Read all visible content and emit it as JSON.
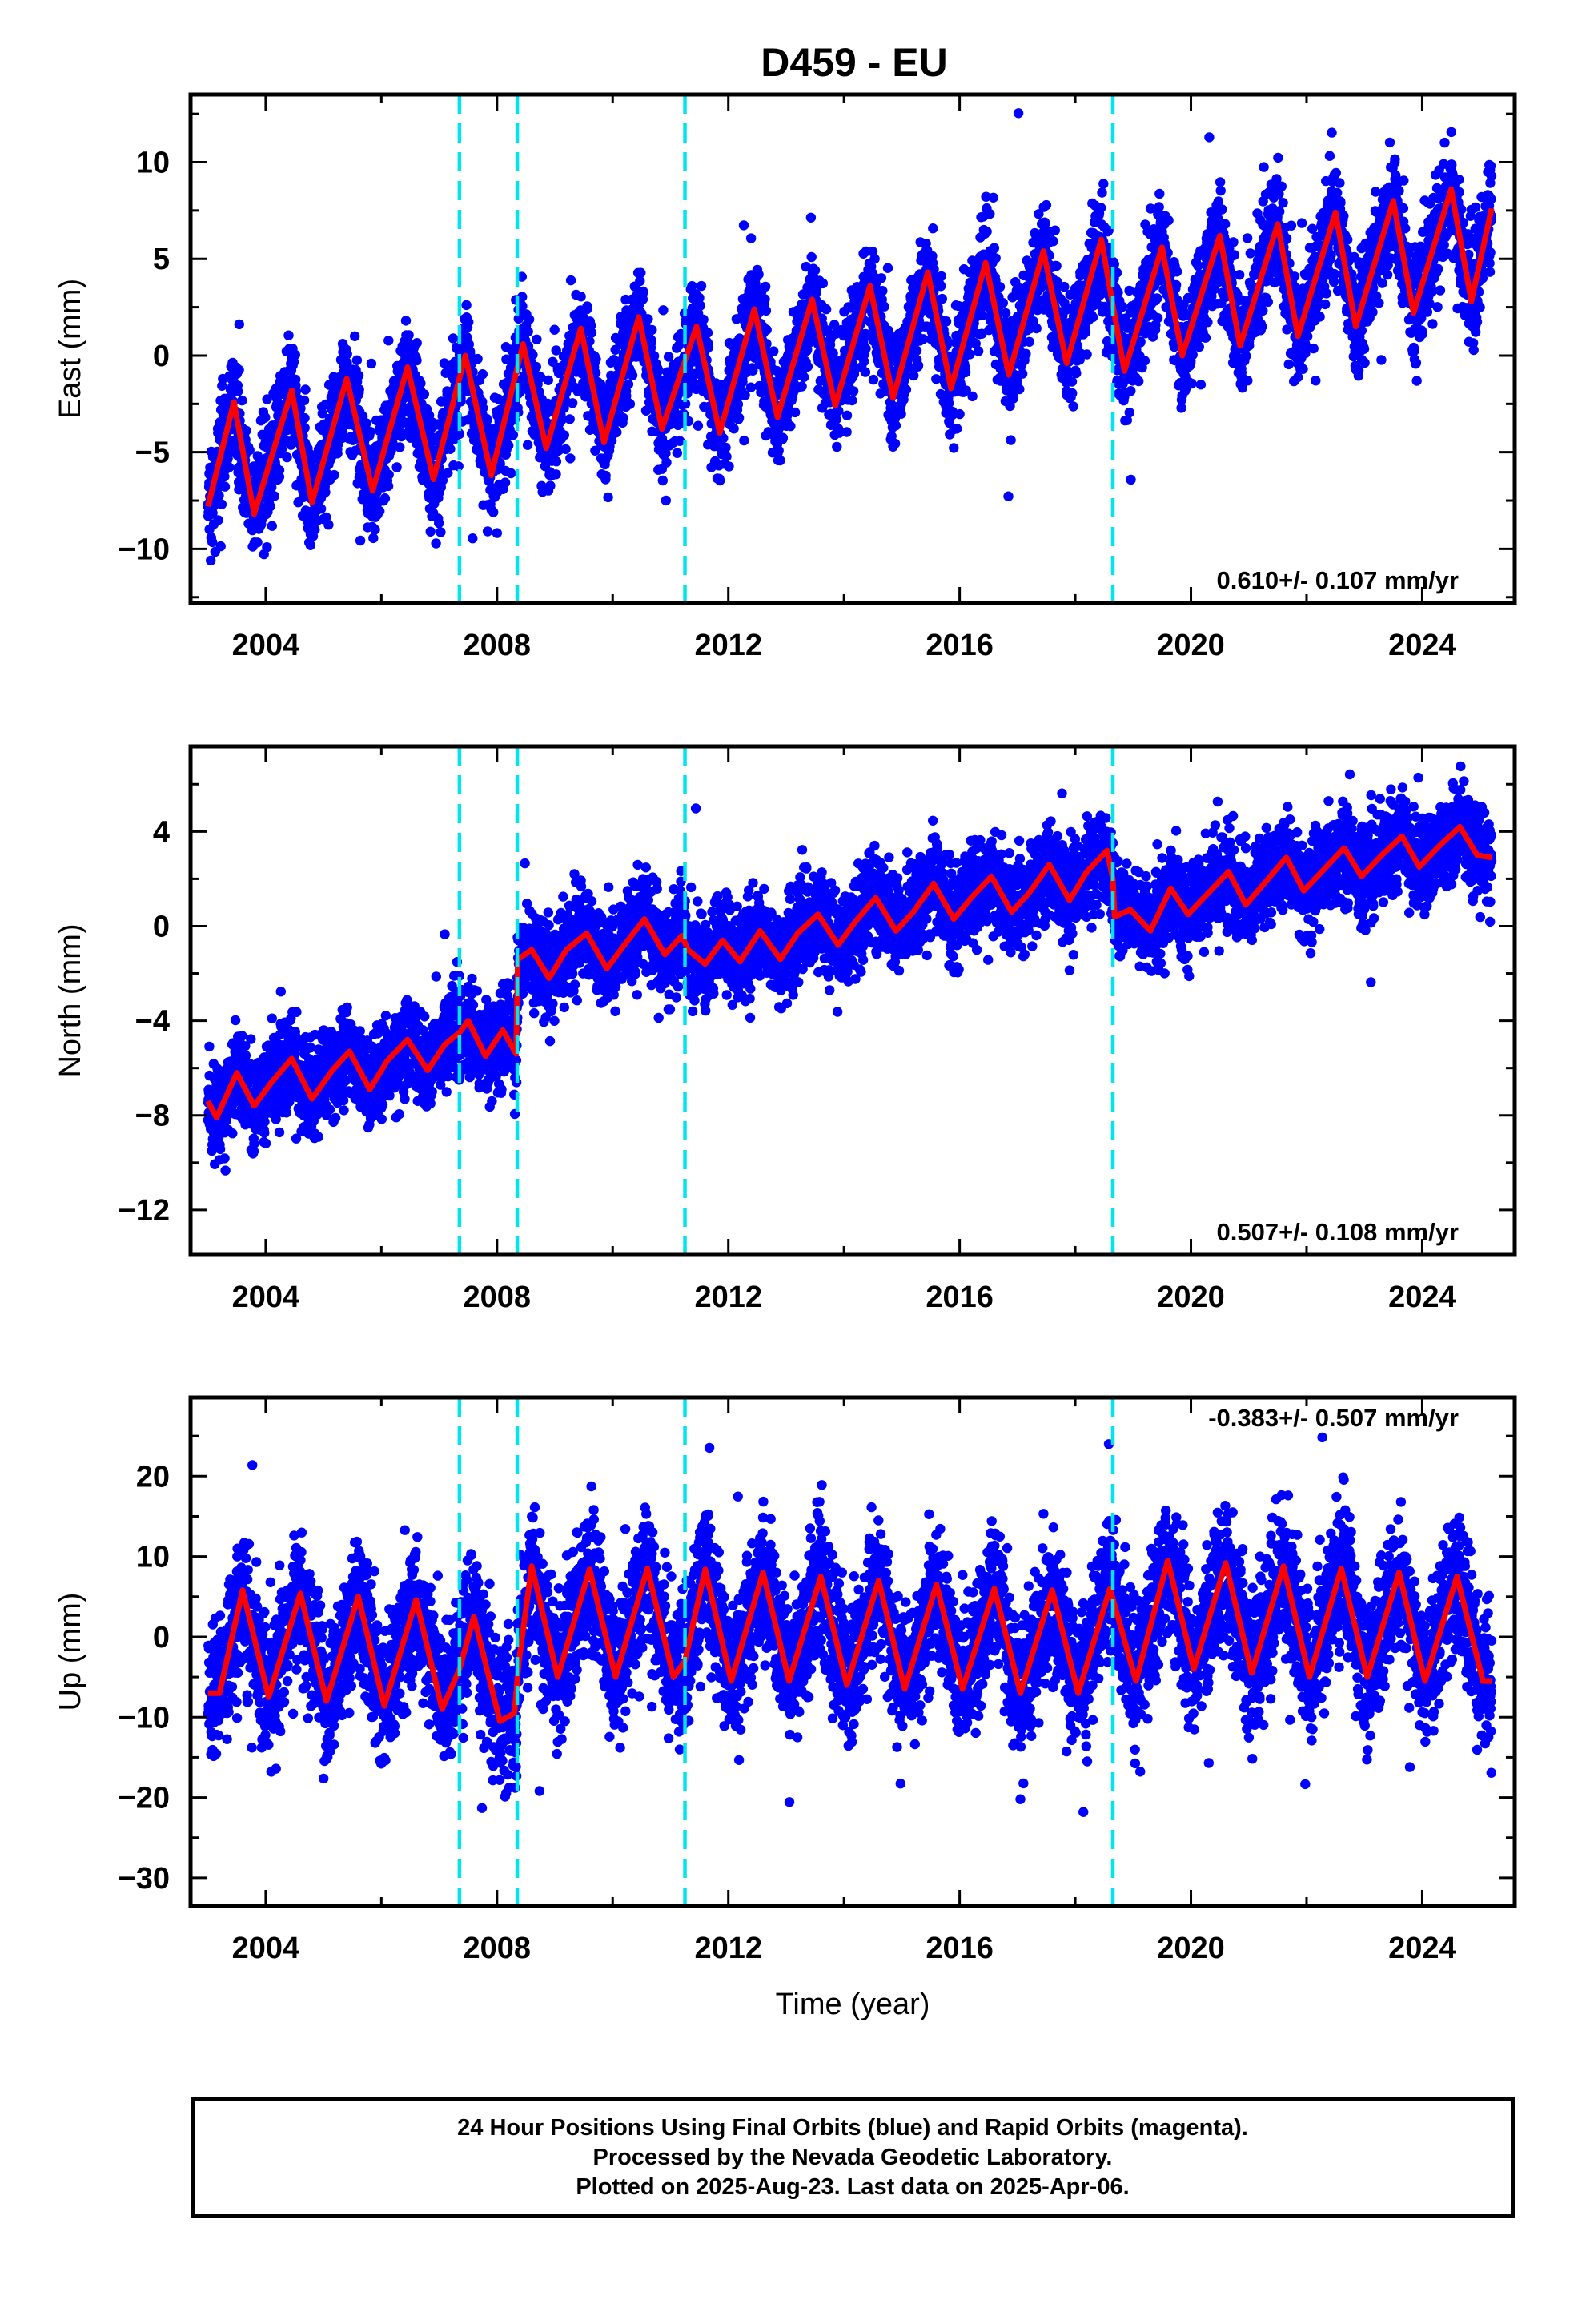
{
  "title": "D459 - EU",
  "colors": {
    "scatter": "#0000ff",
    "model": "#ff0000",
    "offset": "#00e5ee",
    "frame": "#000000"
  },
  "chart_data": [
    {
      "type": "scatter",
      "ylabel": "East (mm)",
      "xlabel": "",
      "xlim": [
        2002.7,
        2025.6
      ],
      "ylim": [
        -12.8,
        13.5
      ],
      "yticks": [
        10,
        5,
        0,
        -5,
        -10
      ],
      "yminor": 2.5,
      "xticks": [
        2004,
        2008,
        2012,
        2016,
        2020,
        2024
      ],
      "xminor": 2,
      "rate": "0.610+/- 0.107 mm/yr",
      "rate_pos": "bottom-right",
      "offsets": [
        2007.35,
        2008.35,
        2011.25,
        2018.65
      ],
      "model": {
        "x": [
          2003.0,
          2003.45,
          2003.8,
          2004.45,
          2004.8,
          2005.4,
          2005.85,
          2006.45,
          2006.9,
          2007.45,
          2007.9,
          2008.45,
          2008.85,
          2009.45,
          2009.85,
          2010.45,
          2010.85,
          2011.45,
          2011.85,
          2012.45,
          2012.85,
          2013.45,
          2013.85,
          2014.45,
          2014.85,
          2015.45,
          2015.85,
          2016.45,
          2016.85,
          2017.45,
          2017.85,
          2018.45,
          2018.85,
          2019.5,
          2019.85,
          2020.5,
          2020.85,
          2021.5,
          2021.85,
          2022.5,
          2022.85,
          2023.5,
          2023.85,
          2024.5,
          2024.85,
          2025.2
        ],
        "y": [
          -7.8,
          -2.4,
          -8.2,
          -1.8,
          -7.6,
          -1.2,
          -7.0,
          -0.6,
          -6.4,
          0.0,
          -6.2,
          0.6,
          -4.8,
          1.4,
          -4.5,
          2.0,
          -3.8,
          1.5,
          -4.0,
          2.4,
          -3.2,
          2.9,
          -2.6,
          3.6,
          -2.2,
          4.3,
          -1.7,
          4.8,
          -1.0,
          5.4,
          -0.4,
          6.0,
          -0.8,
          5.6,
          0.0,
          6.2,
          0.5,
          6.8,
          1.0,
          7.4,
          1.5,
          8.0,
          2.2,
          8.6,
          2.8,
          7.6
        ]
      }
    },
    {
      "type": "scatter",
      "ylabel": "North (mm)",
      "xlabel": "",
      "xlim": [
        2002.7,
        2025.6
      ],
      "ylim": [
        -13.9,
        7.6
      ],
      "yticks": [
        4,
        0,
        -4,
        -8,
        -12
      ],
      "yminor": 2,
      "xticks": [
        2004,
        2008,
        2012,
        2016,
        2020,
        2024
      ],
      "xminor": 2,
      "rate": "0.507+/- 0.108 mm/yr",
      "rate_pos": "bottom-right",
      "offsets": [
        2007.35,
        2008.35,
        2011.25,
        2018.65
      ],
      "model": {
        "x": [
          2003.0,
          2003.15,
          2003.5,
          2003.8,
          2004.1,
          2004.45,
          2004.8,
          2005.15,
          2005.45,
          2005.8,
          2006.1,
          2006.45,
          2006.8,
          2007.1,
          2007.35,
          2007.5,
          2007.8,
          2008.1,
          2008.33,
          2008.36,
          2008.6,
          2008.9,
          2009.2,
          2009.55,
          2009.9,
          2010.2,
          2010.55,
          2010.9,
          2011.2,
          2011.3,
          2011.6,
          2011.9,
          2012.2,
          2012.55,
          2012.9,
          2013.2,
          2013.55,
          2013.9,
          2014.2,
          2014.55,
          2014.9,
          2015.2,
          2015.55,
          2015.9,
          2016.2,
          2016.55,
          2016.9,
          2017.2,
          2017.55,
          2017.9,
          2018.2,
          2018.55,
          2018.65,
          2018.68,
          2018.95,
          2019.3,
          2019.65,
          2019.95,
          2020.3,
          2020.65,
          2020.95,
          2021.3,
          2021.65,
          2021.95,
          2022.3,
          2022.65,
          2022.95,
          2023.3,
          2023.65,
          2023.95,
          2024.3,
          2024.65,
          2024.95,
          2025.2
        ],
        "y": [
          -7.4,
          -8.1,
          -6.2,
          -7.6,
          -6.6,
          -5.6,
          -7.3,
          -6.1,
          -5.3,
          -6.9,
          -5.7,
          -4.8,
          -6.1,
          -5.0,
          -4.5,
          -4.0,
          -5.5,
          -4.4,
          -5.4,
          -1.4,
          -1.0,
          -2.2,
          -1.0,
          -0.3,
          -1.8,
          -0.8,
          0.3,
          -1.2,
          -0.4,
          -1.0,
          -1.6,
          -0.6,
          -1.5,
          -0.2,
          -1.4,
          -0.3,
          0.5,
          -0.8,
          0.2,
          1.2,
          -0.2,
          0.6,
          1.8,
          0.3,
          1.2,
          2.1,
          0.6,
          1.4,
          2.6,
          1.1,
          2.3,
          3.2,
          2.0,
          0.4,
          0.7,
          -0.2,
          1.6,
          0.5,
          1.4,
          2.3,
          0.9,
          1.9,
          2.9,
          1.5,
          2.4,
          3.3,
          2.1,
          3.0,
          3.8,
          2.5,
          3.4,
          4.2,
          3.0,
          2.9
        ]
      }
    },
    {
      "type": "scatter",
      "ylabel": "Up (mm)",
      "xlabel": "Time (year)",
      "xlim": [
        2002.7,
        2025.6
      ],
      "ylim": [
        -33.5,
        29.8
      ],
      "yticks": [
        20,
        10,
        0,
        -10,
        -20,
        -30
      ],
      "yminor": 5,
      "xticks": [
        2004,
        2008,
        2012,
        2016,
        2020,
        2024
      ],
      "xminor": 2,
      "rate": "-0.383+/- 0.507 mm/yr",
      "rate_pos": "top-right",
      "offsets": [
        2007.35,
        2008.35,
        2011.25,
        2018.65
      ],
      "model": {
        "x": [
          2003.0,
          2003.2,
          2003.6,
          2004.05,
          2004.6,
          2005.05,
          2005.6,
          2006.05,
          2006.6,
          2007.05,
          2007.35,
          2007.6,
          2008.05,
          2008.3,
          2008.38,
          2008.6,
          2009.05,
          2009.6,
          2010.05,
          2010.6,
          2011.05,
          2011.25,
          2011.6,
          2012.05,
          2012.6,
          2013.05,
          2013.6,
          2014.05,
          2014.6,
          2015.05,
          2015.6,
          2016.05,
          2016.6,
          2017.05,
          2017.6,
          2018.05,
          2018.6,
          2019.05,
          2019.6,
          2020.05,
          2020.6,
          2021.05,
          2021.6,
          2022.05,
          2022.6,
          2023.05,
          2023.6,
          2024.05,
          2024.6,
          2025.05,
          2025.2
        ],
        "y": [
          -7.0,
          -7.0,
          5.8,
          -7.5,
          5.4,
          -8.0,
          5.0,
          -8.6,
          4.6,
          -9.0,
          -4.0,
          2.5,
          -10.5,
          -9.5,
          -3.0,
          8.8,
          -5.0,
          8.4,
          -5.0,
          8.5,
          -5.0,
          -3.0,
          8.4,
          -5.5,
          8.0,
          -5.5,
          7.5,
          -6.0,
          7.0,
          -6.5,
          6.5,
          -6.5,
          6.0,
          -7.0,
          5.8,
          -7.0,
          6.0,
          -5.5,
          9.5,
          -4.0,
          9.2,
          -4.5,
          8.8,
          -5.0,
          8.5,
          -5.0,
          8.0,
          -5.5,
          7.5,
          -5.5,
          -5.5
        ]
      }
    }
  ],
  "footer": {
    "line1": "24 Hour Positions Using Final Orbits (blue) and Rapid Orbits (magenta).",
    "line2": "Processed by the Nevada Geodetic Laboratory.",
    "line3": "Plotted on 2025-Aug-23. Last data on 2025-Apr-06."
  }
}
